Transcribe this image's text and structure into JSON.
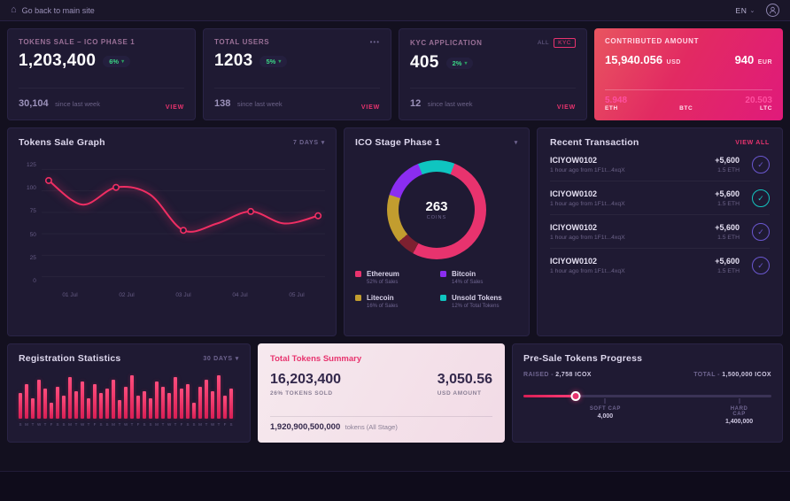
{
  "topbar": {
    "back_label": "Go back to main site",
    "lang": "EN"
  },
  "icons": {
    "home": "⌂",
    "caret_down": "▾",
    "caret_small": "⌄",
    "more": "•••",
    "check": "✓"
  },
  "stat_cards": [
    {
      "title": "TOKENS SALE – ICO PHASE 1",
      "value": "1,203,400",
      "badge": "6%",
      "sub_value": "30,104",
      "sub_label": "since last week",
      "action": "VIEW"
    },
    {
      "title": "TOTAL USERS",
      "value": "1203",
      "badge": "5%",
      "sub_value": "138",
      "sub_label": "since last week",
      "action": "VIEW"
    },
    {
      "title": "KYC APPLICATION",
      "value": "405",
      "badge": "2%",
      "sub_value": "12",
      "sub_label": "since last week",
      "action": "VIEW",
      "filters": [
        "ALL",
        "KYC"
      ]
    }
  ],
  "contributed": {
    "title": "CONTRIBUTED AMOUNT",
    "primary_value": "15,940.056",
    "primary_unit": "USD",
    "secondary_value": "940",
    "secondary_unit": "EUR",
    "coins": [
      {
        "value": "5.948",
        "unit": "ETH"
      },
      {
        "value": "",
        "unit": "BTC"
      },
      {
        "value": "20.503",
        "unit": "LTC"
      }
    ]
  },
  "tokens_sale_graph": {
    "title": "Tokens Sale Graph",
    "range": "7 DAYS"
  },
  "ico_stage": {
    "title": "ICO Stage Phase 1"
  },
  "transactions": {
    "title": "Recent Transaction",
    "action": "VIEW ALL",
    "rows": [
      {
        "id": "ICIYOW0102",
        "meta": "1 hour ago from 1F1t...4xqX",
        "amount": "+5,600",
        "amount_sub": "1.5 ETH",
        "icon_color": "#6a57cf"
      },
      {
        "id": "ICIYOW0102",
        "meta": "1 hour ago from 1F1t...4xqX",
        "amount": "+5,600",
        "amount_sub": "1.5 ETH",
        "icon_color": "#14c5c0"
      },
      {
        "id": "ICIYOW0102",
        "meta": "1 hour ago from 1F1t...4xqX",
        "amount": "+5,600",
        "amount_sub": "1.5 ETH",
        "icon_color": "#6a57cf"
      },
      {
        "id": "ICIYOW0102",
        "meta": "1 hour ago from 1F1t...4xqX",
        "amount": "+5,600",
        "amount_sub": "1.5 ETH",
        "icon_color": "#6a57cf"
      }
    ]
  },
  "registration": {
    "title": "Registration Statistics",
    "range": "30 DAYS"
  },
  "summary": {
    "title": "Total Tokens Summary",
    "tokens_value": "16,203,400",
    "tokens_label": "26% TOKENS SOLD",
    "usd_value": "3,050.56",
    "usd_label": "USD AMOUNT",
    "total_value": "1,920,900,500,000",
    "total_suffix": "tokens (All Stage)"
  },
  "presale": {
    "title": "Pre-Sale Tokens Progress",
    "raised_label": "RAISED - ",
    "raised_value": "2,758 ICOX",
    "total_label": "TOTAL - ",
    "total_value": "1,500,000 ICOX",
    "progress_pct": 21,
    "soft_cap": {
      "label": "SOFT CAP",
      "value": "4,000",
      "pos_pct": 33
    },
    "hard_cap": {
      "label": "HARD CAP",
      "value": "1,400,000",
      "pos_pct": 87
    }
  },
  "chart_data": [
    {
      "type": "line",
      "title": "Tokens Sale Graph",
      "x": [
        "01 Jul",
        "02 Jul",
        "03 Jul",
        "04 Jul",
        "05 Jul"
      ],
      "values": [
        110,
        105,
        55,
        75,
        70
      ],
      "smooth_values": [
        112,
        84,
        104,
        96,
        54,
        62,
        76,
        62,
        71
      ],
      "marker_indices": [
        0,
        2,
        4,
        6,
        8
      ],
      "ylim": [
        0,
        125
      ],
      "yticks": [
        0,
        25,
        50,
        75,
        100,
        125
      ],
      "line_color": "#ef2e63",
      "grid": "faint",
      "legend_position": "none"
    },
    {
      "type": "pie",
      "title": "ICO Stage Phase 1",
      "center_value": "263",
      "center_label": "COINS",
      "segments": [
        {
          "label": "Ethereum",
          "sub": "52% of Sales",
          "value": 52,
          "color": "#e8336e"
        },
        {
          "label": "Bitcoin",
          "sub": "14% of Sales",
          "value": 14,
          "color": "#8b2df0"
        },
        {
          "label": "Litecoin",
          "sub": "16% of Sales",
          "value": 16,
          "color": "#c29d2f"
        },
        {
          "label": "Unsold Tokens",
          "sub": "12% of Total Tokens",
          "value": 12,
          "color": "#0fc5c0"
        }
      ],
      "remainder": {
        "label": "Other",
        "value": 6,
        "color": "#7d2030"
      }
    },
    {
      "type": "bar",
      "title": "Registration Statistics",
      "categories": [
        "S",
        "M",
        "T",
        "W",
        "T",
        "F",
        "S",
        "S",
        "M",
        "T",
        "W",
        "T",
        "F",
        "S",
        "S",
        "M",
        "T",
        "W",
        "T",
        "F",
        "S",
        "S",
        "M",
        "T",
        "W",
        "T",
        "F",
        "S",
        "S",
        "M",
        "T",
        "W",
        "T",
        "F",
        "S"
      ],
      "values": [
        55,
        75,
        45,
        85,
        65,
        35,
        70,
        50,
        90,
        60,
        80,
        45,
        75,
        55,
        65,
        85,
        40,
        70,
        95,
        50,
        60,
        45,
        80,
        70,
        55,
        90,
        65,
        75,
        35,
        70,
        85,
        60,
        95,
        50,
        65
      ],
      "ylim": [
        0,
        100
      ],
      "bar_color": "#e8336e"
    }
  ]
}
